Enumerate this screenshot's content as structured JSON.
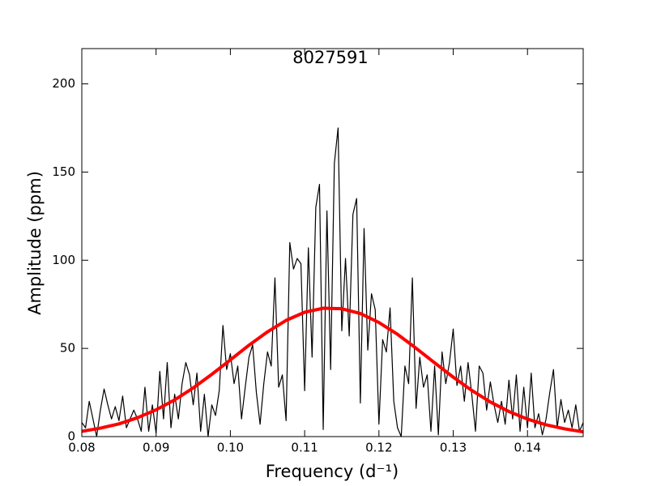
{
  "chart_data": {
    "type": "line",
    "title": "8027591",
    "xlabel": "Frequency (d⁻¹)",
    "ylabel": "Amplitude (ppm)",
    "xlim": [
      0.08,
      0.1475
    ],
    "ylim": [
      0,
      220
    ],
    "xticks": [
      0.08,
      0.09,
      {
        "value": 0.1,
        "label": "0.10"
      },
      0.11,
      0.12,
      0.13,
      0.14
    ],
    "yticks": [
      0,
      50,
      100,
      150,
      200
    ],
    "series": [
      {
        "color": "#000000",
        "line_width": 1.2,
        "x": [
          0.08,
          0.0805,
          0.081,
          0.0815,
          0.082,
          0.0825,
          0.083,
          0.0835,
          0.084,
          0.0845,
          0.085,
          0.0855,
          0.086,
          0.0865,
          0.087,
          0.0875,
          0.088,
          0.0885,
          0.089,
          0.0895,
          0.09,
          0.0905,
          0.091,
          0.0915,
          0.092,
          0.0925,
          0.093,
          0.0935,
          0.094,
          0.0945,
          0.095,
          0.0955,
          0.096,
          0.0965,
          0.097,
          0.0975,
          0.098,
          0.0985,
          0.099,
          0.0995,
          0.1,
          0.1005,
          0.101,
          0.1015,
          0.102,
          0.1025,
          0.103,
          0.1035,
          0.104,
          0.1045,
          0.105,
          0.1055,
          0.106,
          0.1065,
          0.107,
          0.1075,
          0.108,
          0.1085,
          0.109,
          0.1095,
          0.11,
          0.1105,
          0.111,
          0.1115,
          0.112,
          0.1125,
          0.113,
          0.1135,
          0.114,
          0.1145,
          0.115,
          0.1155,
          0.116,
          0.1165,
          0.117,
          0.1175,
          0.118,
          0.1185,
          0.119,
          0.1195,
          0.12,
          0.1205,
          0.121,
          0.1215,
          0.122,
          0.1225,
          0.123,
          0.1235,
          0.124,
          0.1245,
          0.125,
          0.1255,
          0.126,
          0.1265,
          0.127,
          0.1275,
          0.128,
          0.1285,
          0.129,
          0.1295,
          0.13,
          0.1305,
          0.131,
          0.1315,
          0.132,
          0.1325,
          0.133,
          0.1335,
          0.134,
          0.1345,
          0.135,
          0.1355,
          0.136,
          0.1365,
          0.137,
          0.1375,
          0.138,
          0.1385,
          0.139,
          0.1395,
          0.14,
          0.1405,
          0.141,
          0.1415,
          0.142,
          0.1425,
          0.143,
          0.1435,
          0.144,
          0.1445,
          0.145,
          0.1455,
          0.146,
          0.1465,
          0.147,
          0.1475
        ],
        "values": [
          8,
          5,
          20,
          10,
          0,
          15,
          27,
          18,
          10,
          17,
          9,
          23,
          5,
          10,
          15,
          10,
          3,
          28,
          3,
          18,
          2,
          37,
          10,
          42,
          5,
          24,
          10,
          30,
          42,
          35,
          18,
          36,
          3,
          24,
          0,
          18,
          12,
          26,
          63,
          38,
          47,
          30,
          40,
          10,
          28,
          45,
          52,
          25,
          7,
          30,
          48,
          40,
          90,
          28,
          35,
          9,
          110,
          95,
          101,
          98,
          26,
          107,
          45,
          130,
          143,
          4,
          128,
          38,
          155,
          175,
          60,
          101,
          57,
          126,
          135,
          19,
          118,
          49,
          81,
          72,
          7,
          55,
          48,
          73,
          20,
          5,
          0,
          40,
          30,
          90,
          16,
          45,
          28,
          35,
          3,
          40,
          1,
          48,
          30,
          42,
          61,
          29,
          40,
          20,
          42,
          24,
          3,
          40,
          36,
          15,
          31,
          18,
          8,
          20,
          7,
          32,
          10,
          35,
          3,
          28,
          5,
          36,
          5,
          13,
          1,
          10,
          25,
          38,
          5,
          21,
          8,
          15,
          5,
          18,
          3,
          8
        ]
      },
      {
        "color": "#ff0000",
        "line_width": 4,
        "x": [
          0.08,
          0.0825,
          0.085,
          0.0875,
          0.09,
          0.0925,
          0.095,
          0.0975,
          0.1,
          0.1025,
          0.105,
          0.1075,
          0.11,
          0.1125,
          0.115,
          0.1175,
          0.12,
          0.1225,
          0.125,
          0.1275,
          0.13,
          0.1325,
          0.135,
          0.1375,
          0.14,
          0.1425,
          0.145,
          0.1475
        ],
        "values": [
          3.0,
          4.8,
          7.2,
          10.7,
          15.2,
          20.8,
          27.6,
          35.3,
          43.5,
          51.8,
          59.4,
          65.9,
          70.5,
          72.8,
          72.5,
          69.8,
          64.7,
          58.0,
          50.1,
          41.8,
          33.7,
          26.2,
          19.6,
          14.2,
          9.9,
          6.7,
          4.4,
          2.7
        ]
      }
    ]
  }
}
